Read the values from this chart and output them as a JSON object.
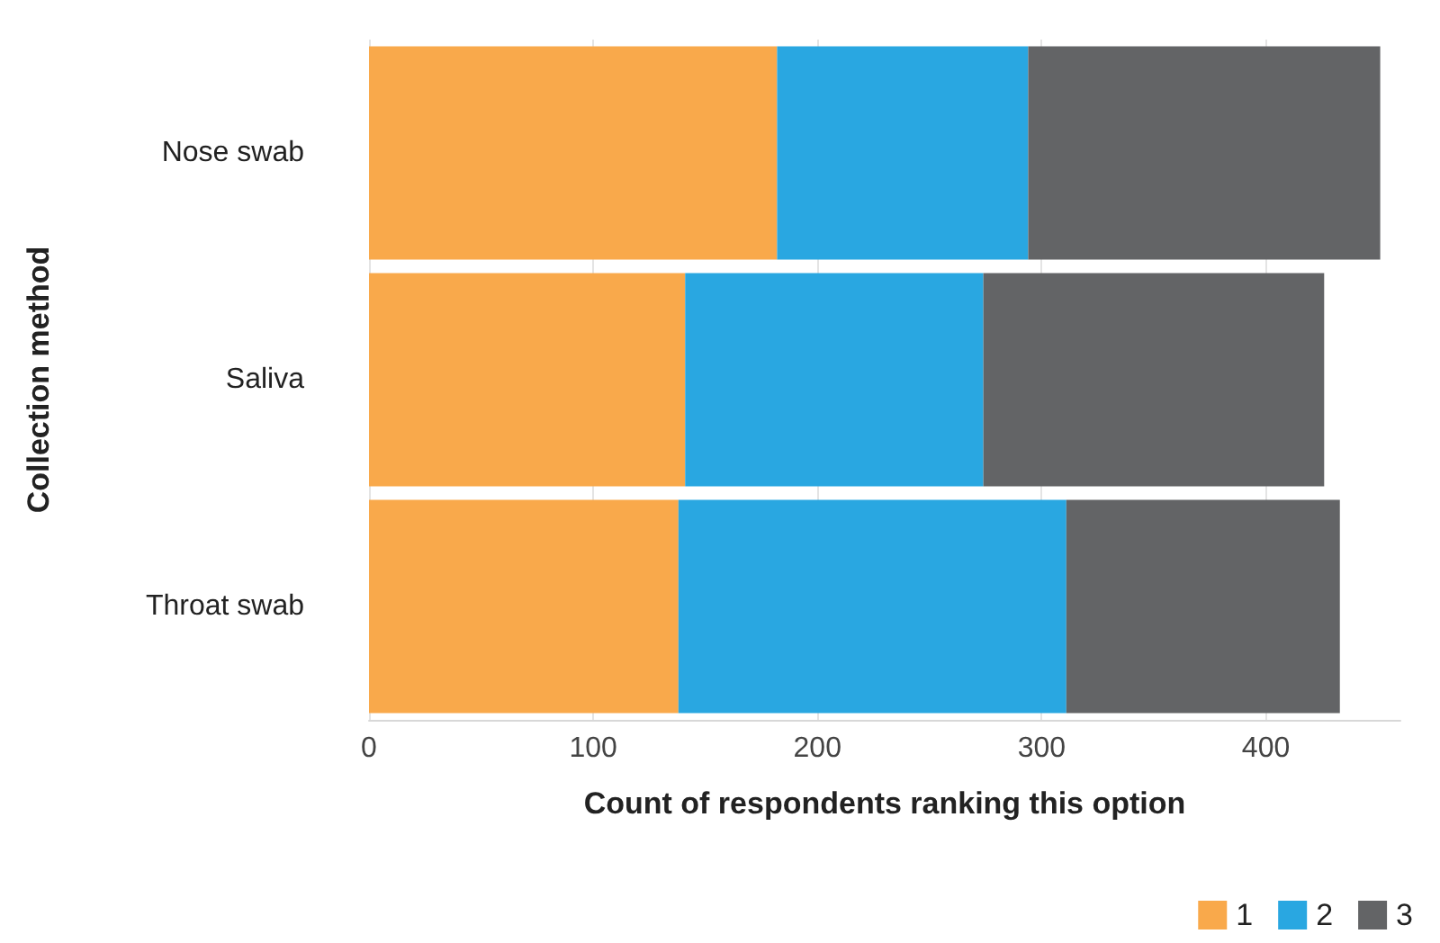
{
  "chart_data": {
    "type": "bar",
    "orientation": "horizontal",
    "stacked": true,
    "xlabel": "Count of respondents ranking this option",
    "ylabel": "Collection method",
    "categories": [
      "Nose swab",
      "Saliva",
      "Throat swab"
    ],
    "series": [
      {
        "name": "1",
        "color": "#f9a94b",
        "values": [
          182,
          141,
          138
        ]
      },
      {
        "name": "2",
        "color": "#29a7e1",
        "values": [
          112,
          133,
          173
        ]
      },
      {
        "name": "3",
        "color": "#636466",
        "values": [
          157,
          152,
          122
        ]
      }
    ],
    "xlim": [
      0,
      460
    ],
    "xticks": [
      0,
      100,
      200,
      300,
      400
    ],
    "grid": "x",
    "legend": "bottom right"
  }
}
